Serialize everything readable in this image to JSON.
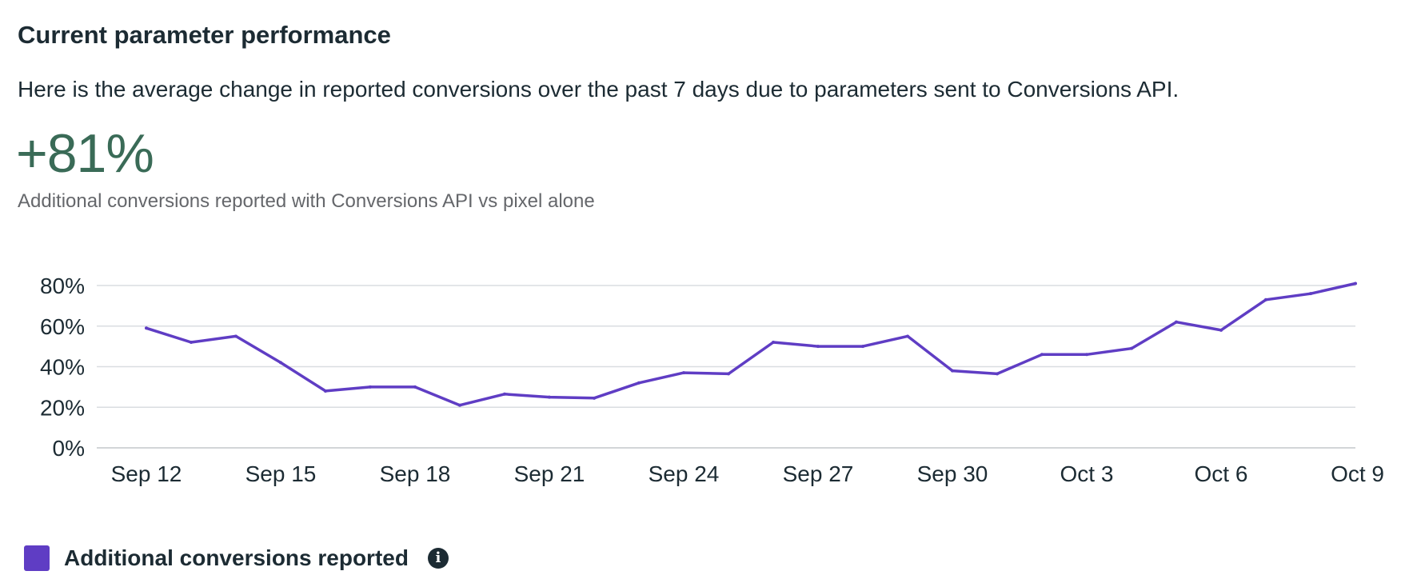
{
  "header": {
    "title": "Current parameter performance",
    "description": "Here is the average change in reported conversions over the past 7 days due to parameters sent to Conversions API."
  },
  "metric": {
    "value": "+81%",
    "caption": "Additional conversions reported with Conversions API vs pixel alone"
  },
  "colors": {
    "line": "#5f3dc4",
    "metric": "#3a6b57",
    "grid": "#dadde1",
    "axis": "#1c2b33"
  },
  "legend": {
    "label": "Additional conversions reported",
    "info_icon": "info-icon",
    "info_glyph": "i"
  },
  "chart_data": {
    "type": "line",
    "title": "",
    "xlabel": "",
    "ylabel": "",
    "ylim": [
      0,
      80
    ],
    "y_ticks": [
      0,
      20,
      40,
      60,
      80
    ],
    "y_tick_labels": [
      "0%",
      "20%",
      "40%",
      "60%",
      "80%"
    ],
    "x_ticks": [
      "Sep 12",
      "Sep 15",
      "Sep 18",
      "Sep 21",
      "Sep 24",
      "Sep 27",
      "Sep 30",
      "Oct 3",
      "Oct 6",
      "Oct 9"
    ],
    "grid": true,
    "series": [
      {
        "name": "Additional conversions reported",
        "x": [
          "Sep 12",
          "Sep 13",
          "Sep 14",
          "Sep 15",
          "Sep 16",
          "Sep 17",
          "Sep 18",
          "Sep 19",
          "Sep 20",
          "Sep 21",
          "Sep 22",
          "Sep 23",
          "Sep 24",
          "Sep 25",
          "Sep 26",
          "Sep 27",
          "Sep 28",
          "Sep 29",
          "Sep 30",
          "Oct 1",
          "Oct 2",
          "Oct 3",
          "Oct 4",
          "Oct 5",
          "Oct 6",
          "Oct 7",
          "Oct 8",
          "Oct 9"
        ],
        "values": [
          59,
          52,
          55,
          42,
          28,
          30,
          30,
          21,
          26.5,
          25,
          24.5,
          32,
          37,
          36.5,
          52,
          50,
          50,
          55,
          38,
          36.5,
          46,
          46,
          49,
          62,
          58,
          73,
          76,
          81
        ]
      }
    ]
  }
}
